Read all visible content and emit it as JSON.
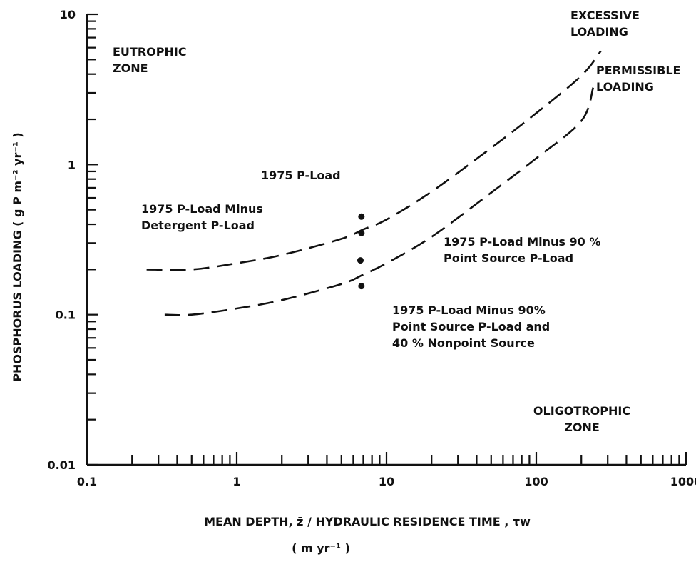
{
  "chart_data": {
    "type": "line",
    "title": "",
    "xlabel": "MEAN DEPTH, z̄ / HYDRAULIC RESIDENCE TIME , τw",
    "xlabel_units": "( m  yr⁻¹ )",
    "ylabel": "PHOSPHORUS LOADING ( g P m⁻² yr⁻¹ )",
    "x_scale": "log",
    "y_scale": "log",
    "xlim": [
      0.1,
      1000
    ],
    "ylim": [
      0.01,
      10
    ],
    "x_tick_labels": [
      "0.1",
      "1",
      "10",
      "100",
      "1000"
    ],
    "y_tick_labels": [
      "0.01",
      "0.1",
      "1",
      "10"
    ],
    "grid": false,
    "series": [
      {
        "name": "EXCESSIVE LOADING",
        "style": "dashed",
        "x": [
          0.25,
          0.5,
          1,
          2,
          5,
          7,
          10,
          20,
          50,
          100,
          200,
          270
        ],
        "y": [
          0.2,
          0.2,
          0.22,
          0.25,
          0.32,
          0.37,
          0.43,
          0.66,
          1.29,
          2.2,
          3.9,
          5.7
        ]
      },
      {
        "name": "PERMISSIBLE LOADING",
        "style": "dashed",
        "x": [
          0.33,
          0.5,
          1,
          2,
          5,
          7,
          10,
          20,
          50,
          100,
          200,
          240
        ],
        "y": [
          0.1,
          0.1,
          0.11,
          0.125,
          0.16,
          0.185,
          0.22,
          0.33,
          0.65,
          1.1,
          1.95,
          3.25
        ]
      }
    ],
    "points": {
      "x": [
        6.8,
        6.8,
        6.7,
        6.8
      ],
      "y": [
        0.45,
        0.35,
        0.23,
        0.155
      ]
    },
    "annotations": [
      {
        "id": "eutrophic",
        "lines": [
          "EUTROPHIC",
          "ZONE"
        ]
      },
      {
        "id": "oligotrophic",
        "lines": [
          "OLIGOTROPHIC",
          "ZONE"
        ]
      },
      {
        "id": "excessive",
        "lines": [
          "EXCESSIVE",
          "LOADING"
        ]
      },
      {
        "id": "permissible",
        "lines": [
          "PERMISSIBLE",
          "LOADING"
        ]
      },
      {
        "id": "p1975",
        "lines": [
          "1975 P-Load"
        ]
      },
      {
        "id": "minus-detergent",
        "lines": [
          "1975 P-Load Minus",
          "Detergent P-Load"
        ]
      },
      {
        "id": "minus-point90",
        "lines": [
          "1975 P-Load Minus 90 %",
          "Point Source  P-Load"
        ]
      },
      {
        "id": "minus-point-nonpoint",
        "lines": [
          "1975 P-Load  Minus 90%",
          "Point Source P-Load and",
          "40 %  Nonpoint Source"
        ]
      }
    ],
    "colors": {
      "ink": "#111111",
      "background": "#ffffff"
    }
  }
}
